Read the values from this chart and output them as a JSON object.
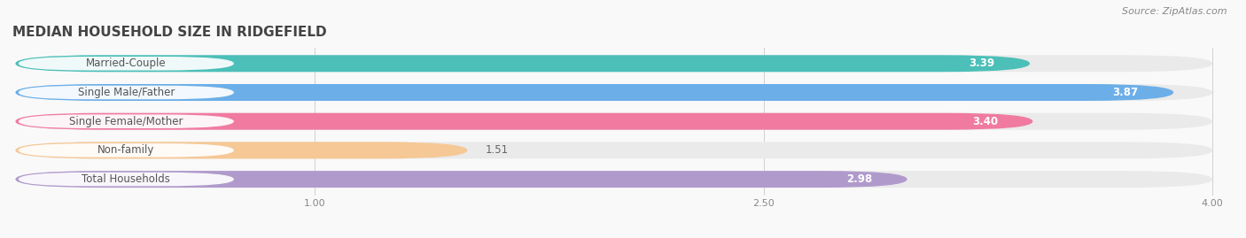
{
  "title": "MEDIAN HOUSEHOLD SIZE IN RIDGEFIELD",
  "source": "Source: ZipAtlas.com",
  "categories": [
    "Married-Couple",
    "Single Male/Father",
    "Single Female/Mother",
    "Non-family",
    "Total Households"
  ],
  "values": [
    3.39,
    3.87,
    3.4,
    1.51,
    2.98
  ],
  "bar_colors": [
    "#4bbfb8",
    "#6baee8",
    "#f07aa0",
    "#f5c896",
    "#b09acc"
  ],
  "bar_bg_color": "#eaeaea",
  "xlim_data": [
    0.0,
    4.0
  ],
  "xticks": [
    1.0,
    2.5,
    4.0
  ],
  "label_fontsize": 8.5,
  "value_fontsize": 8.5,
  "title_fontsize": 11,
  "source_fontsize": 8,
  "bar_height": 0.58,
  "bg_color": "#f9f9f9",
  "label_pill_color": "#ffffff",
  "label_text_color": "#555555",
  "value_text_color": "#ffffff"
}
